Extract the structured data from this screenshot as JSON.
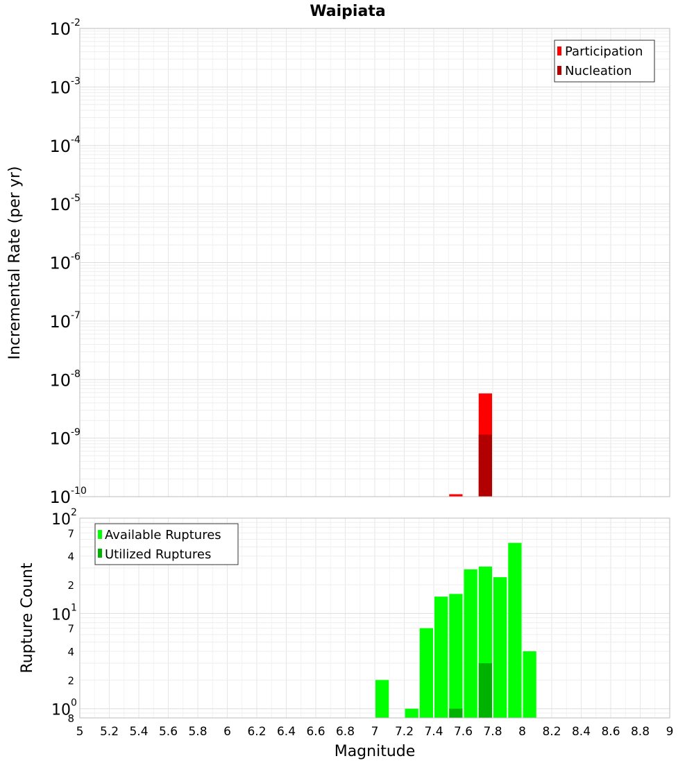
{
  "chart_data": [
    {
      "type": "bar",
      "title": "Waipiata",
      "xlabel": "Magnitude",
      "ylabel": "Incremental Rate (per yr)",
      "yscale": "log",
      "ylim": [
        1e-10,
        0.01
      ],
      "xlim": [
        5,
        9
      ],
      "bin_width": 0.1,
      "y_tick_labels": [
        {
          "value": 1e-10,
          "base": "10",
          "exp": "-10"
        },
        {
          "value": 1e-09,
          "base": "10",
          "exp": "-9"
        },
        {
          "value": 1e-08,
          "base": "10",
          "exp": "-8"
        },
        {
          "value": 1e-07,
          "base": "10",
          "exp": "-7"
        },
        {
          "value": 1e-06,
          "base": "10",
          "exp": "-6"
        },
        {
          "value": 1e-05,
          "base": "10",
          "exp": "-5"
        },
        {
          "value": 0.0001,
          "base": "10",
          "exp": "-4"
        },
        {
          "value": 0.001,
          "base": "10",
          "exp": "-3"
        },
        {
          "value": 0.01,
          "base": "10",
          "exp": "-2"
        }
      ],
      "series": [
        {
          "name": "Participation",
          "color": "#ff0000",
          "x": [
            7.55,
            7.75
          ],
          "values": [
            1.1e-10,
            5.8e-09
          ]
        },
        {
          "name": "Nucleation",
          "color": "#b20000",
          "x": [
            7.75
          ],
          "values": [
            1.15e-09
          ]
        }
      ],
      "legend": {
        "position": "top-right",
        "entries": [
          "Participation",
          "Nucleation"
        ]
      }
    },
    {
      "type": "bar",
      "xlabel": "Magnitude",
      "ylabel": "Rupture Count",
      "yscale": "log",
      "ylim": [
        0.8,
        100
      ],
      "xlim": [
        5,
        9
      ],
      "bin_width": 0.1,
      "x_ticks": [
        "5",
        "5.2",
        "5.4",
        "5.6",
        "5.8",
        "6",
        "6.2",
        "6.4",
        "6.6",
        "6.8",
        "7",
        "7.2",
        "7.4",
        "7.6",
        "7.8",
        "8",
        "8.2",
        "8.4",
        "8.6",
        "8.8",
        "9"
      ],
      "y_tick_labels": [
        {
          "value": 1,
          "base": "10",
          "exp": "0"
        },
        {
          "value": 10,
          "base": "10",
          "exp": "1"
        },
        {
          "value": 100,
          "base": "10",
          "exp": "2"
        }
      ],
      "y_minor_tick_labels": [
        {
          "value": 0.8,
          "label": "8"
        },
        {
          "value": 2,
          "label": "2"
        },
        {
          "value": 4,
          "label": "4"
        },
        {
          "value": 7,
          "label": "7"
        },
        {
          "value": 20,
          "label": "2"
        },
        {
          "value": 40,
          "label": "4"
        },
        {
          "value": 70,
          "label": "7"
        }
      ],
      "series": [
        {
          "name": "Available Ruptures",
          "color": "#00ff00",
          "x": [
            7.05,
            7.25,
            7.35,
            7.45,
            7.55,
            7.65,
            7.75,
            7.85,
            7.95,
            8.05
          ],
          "values": [
            2,
            1,
            7,
            15,
            16,
            29,
            31,
            24,
            55,
            4
          ]
        },
        {
          "name": "Utilized Ruptures",
          "color": "#00b200",
          "x": [
            7.55,
            7.75
          ],
          "values": [
            1,
            3
          ]
        }
      ],
      "legend": {
        "position": "top-left",
        "entries": [
          "Available Ruptures",
          "Utilized Ruptures"
        ]
      }
    }
  ]
}
